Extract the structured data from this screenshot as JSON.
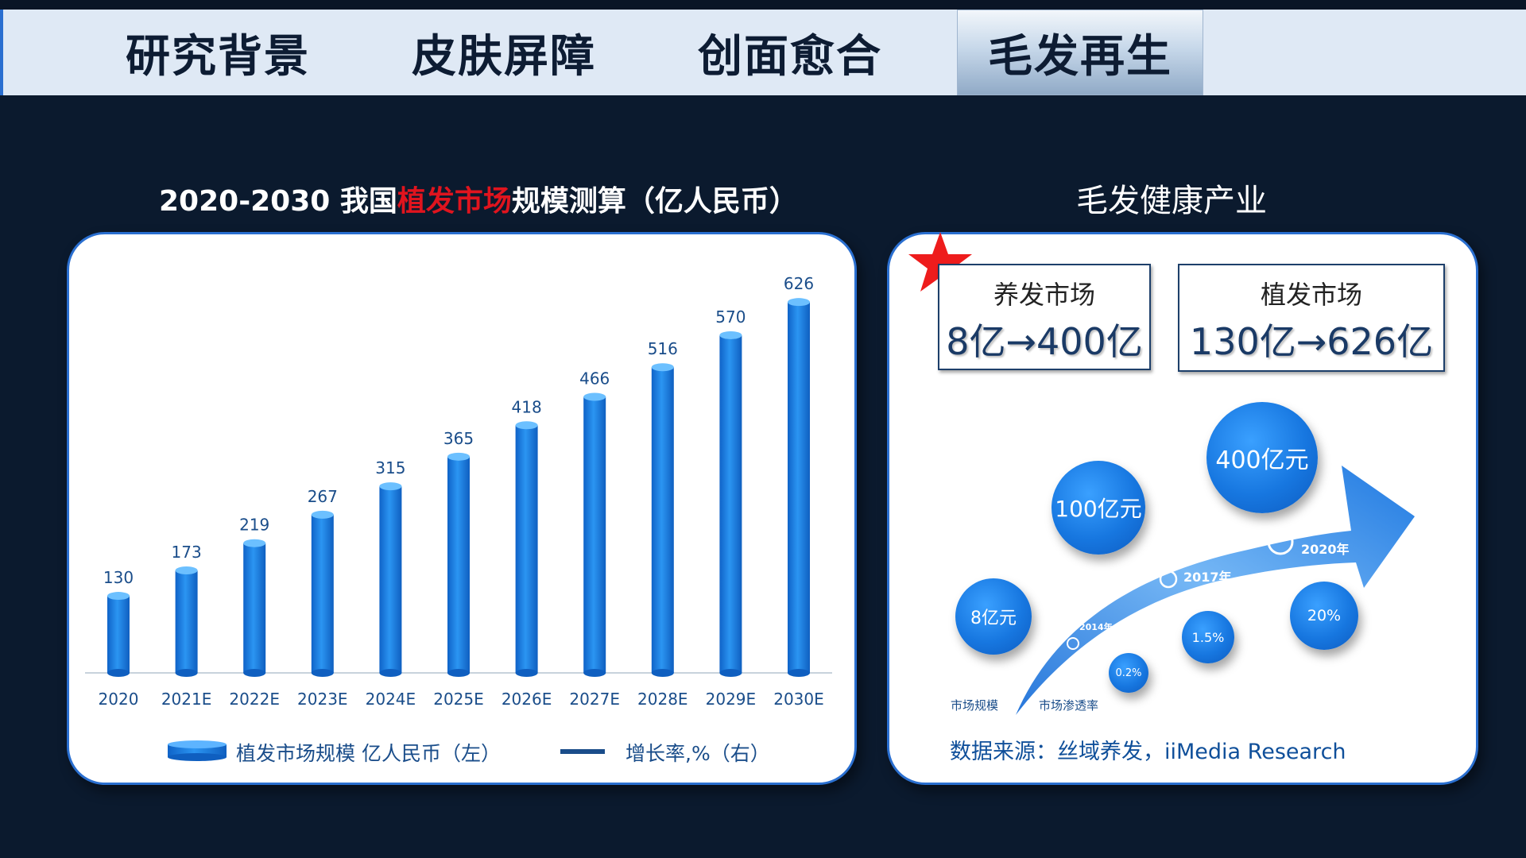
{
  "tabs": [
    {
      "label": "研究背景"
    },
    {
      "label": "皮肤屏障"
    },
    {
      "label": "创面愈合"
    },
    {
      "label": "毛发再生"
    }
  ],
  "left_title": {
    "prefix": "2020-2030 我国",
    "highlight": "植发市场",
    "suffix": "规模测算（亿人民币）"
  },
  "right_title": "毛发健康产业",
  "market_boxes": [
    {
      "label": "养发市场",
      "value": "8亿→400亿"
    },
    {
      "label": "植发市场",
      "value": "130亿→626亿"
    }
  ],
  "bubbles": {
    "market_size": [
      "8亿元",
      "100亿元",
      "400亿元"
    ],
    "penetration": [
      "0.2%",
      "1.5%",
      "20%"
    ],
    "years": [
      "2014年",
      "2017年",
      "2020年"
    ],
    "axis_labels": [
      "市场规模",
      "市场渗透率"
    ]
  },
  "source": "数据来源：丝域养发，iiMedia Research",
  "colors": {
    "accent": "#2a6fd0",
    "bar": "#1f86e8",
    "highlight": "#e0141e",
    "background": "#0b1a2e"
  },
  "chart_data": {
    "type": "bar",
    "title": "2020-2030 我国植发市场规模测算（亿人民币）",
    "categories": [
      "2020",
      "2021E",
      "2022E",
      "2023E",
      "2024E",
      "2025E",
      "2026E",
      "2027E",
      "2028E",
      "2029E",
      "2030E"
    ],
    "series": [
      {
        "name": "植发市场规模 亿人民币（左）",
        "values": [
          130,
          173,
          219,
          267,
          315,
          365,
          418,
          466,
          516,
          570,
          626
        ]
      }
    ],
    "legend_entries": [
      "植发市场规模 亿人民币（左）",
      "增长率,%（右）"
    ],
    "legend": "bottom",
    "grid": false,
    "ylim": [
      0,
      700
    ]
  }
}
